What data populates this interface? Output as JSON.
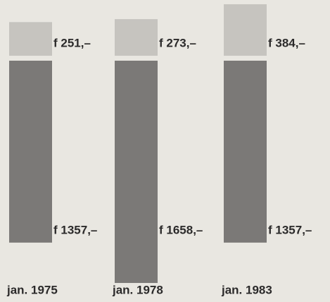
{
  "chart_data": {
    "type": "bar",
    "categories": [
      "jan. 1975",
      "jan. 1978",
      "jan. 1983"
    ],
    "series": [
      {
        "color": "#7b7977",
        "values": [
          1357,
          1658,
          1357
        ],
        "value_labels": [
          "f 1357,–",
          "f 1658,–",
          "f 1357,–"
        ]
      },
      {
        "color": "#c6c4bf",
        "values": [
          251,
          273,
          384
        ],
        "value_labels": [
          "f 251,–",
          "f 273,–",
          "f 384,–"
        ]
      }
    ]
  }
}
